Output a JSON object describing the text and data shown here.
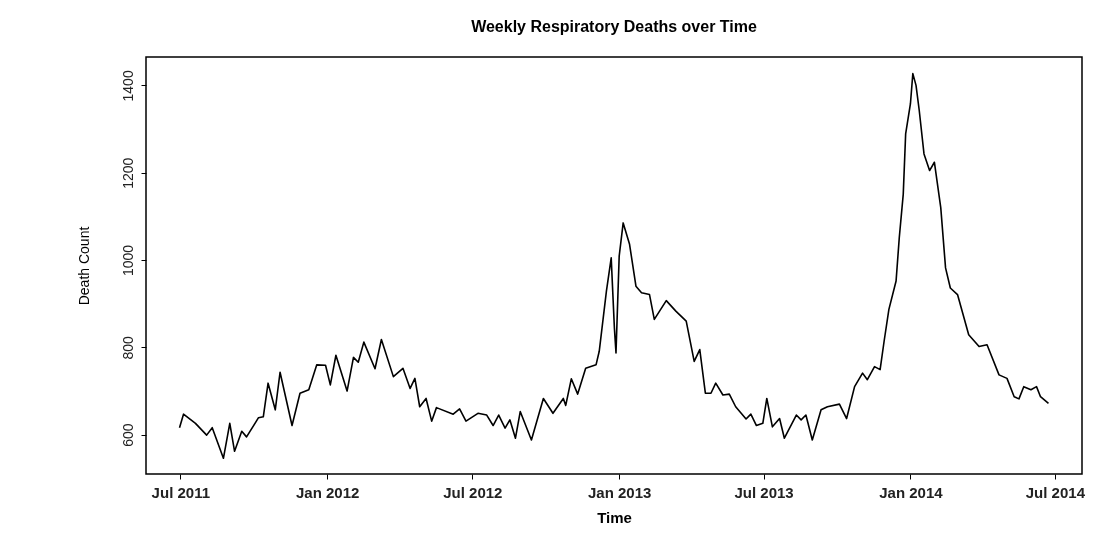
{
  "chart_data": {
    "type": "line",
    "title": "Weekly Respiratory Deaths over Time",
    "xlabel": "Time",
    "ylabel": "Death Count",
    "xlim": [
      "2011-05-19",
      "2014-08-04"
    ],
    "xticks": [
      {
        "value": "2011-07-01",
        "label": "Jul 2011"
      },
      {
        "value": "2012-01-01",
        "label": "Jan 2012"
      },
      {
        "value": "2012-07-01",
        "label": "Jul 2012"
      },
      {
        "value": "2013-01-01",
        "label": "Jan 2013"
      },
      {
        "value": "2013-07-01",
        "label": "Jul 2013"
      },
      {
        "value": "2014-01-01",
        "label": "Jan 2014"
      },
      {
        "value": "2014-07-01",
        "label": "Jul 2014"
      }
    ],
    "ylim": [
      510,
      1465
    ],
    "yticks": [
      600,
      800,
      1000,
      1200,
      1400
    ],
    "grid": false,
    "line_style": "solid",
    "series": [
      {
        "color": "#000000",
        "x": [
          "2011-06-30",
          "2011-07-05",
          "2011-07-20",
          "2011-08-03",
          "2011-08-10",
          "2011-08-24",
          "2011-09-01",
          "2011-09-07",
          "2011-09-16",
          "2011-09-22",
          "2011-10-07",
          "2011-10-13",
          "2011-10-19",
          "2011-10-28",
          "2011-11-03",
          "2011-11-18",
          "2011-11-28",
          "2011-12-09",
          "2011-12-19",
          "2011-12-30",
          "2012-01-05",
          "2012-01-12",
          "2012-01-26",
          "2012-02-03",
          "2012-02-09",
          "2012-02-16",
          "2012-03-01",
          "2012-03-09",
          "2012-03-24",
          "2012-04-05",
          "2012-04-14",
          "2012-04-20",
          "2012-04-26",
          "2012-05-04",
          "2012-05-11",
          "2012-05-17",
          "2012-06-07",
          "2012-06-15",
          "2012-06-23",
          "2012-07-08",
          "2012-07-19",
          "2012-07-27",
          "2012-08-03",
          "2012-08-11",
          "2012-08-17",
          "2012-08-24",
          "2012-08-30",
          "2012-09-13",
          "2012-09-28",
          "2012-10-10",
          "2012-10-23",
          "2012-10-26",
          "2012-11-02",
          "2012-11-10",
          "2012-11-20",
          "2012-12-03",
          "2012-12-07",
          "2012-12-16",
          "2012-12-22",
          "2012-12-26",
          "2012-12-28",
          "2013-01-01",
          "2013-01-06",
          "2013-01-14",
          "2013-01-22",
          "2013-01-29",
          "2013-02-08",
          "2013-02-14",
          "2013-03-01",
          "2013-03-13",
          "2013-03-26",
          "2013-04-05",
          "2013-04-12",
          "2013-04-19",
          "2013-04-26",
          "2013-05-02",
          "2013-05-11",
          "2013-05-19",
          "2013-05-27",
          "2013-06-09",
          "2013-06-15",
          "2013-06-22",
          "2013-06-30",
          "2013-07-05",
          "2013-07-12",
          "2013-07-21",
          "2013-07-27",
          "2013-08-11",
          "2013-08-17",
          "2013-08-23",
          "2013-08-31",
          "2013-09-11",
          "2013-09-19",
          "2013-10-04",
          "2013-10-13",
          "2013-10-23",
          "2013-11-02",
          "2013-11-08",
          "2013-11-17",
          "2013-11-24",
          "2013-11-29",
          "2013-12-05",
          "2013-12-14",
          "2013-12-18",
          "2013-12-23",
          "2013-12-26",
          "2014-01-01",
          "2014-01-04",
          "2014-01-08",
          "2014-01-12",
          "2014-01-18",
          "2014-01-25",
          "2014-01-31",
          "2014-02-08",
          "2014-02-14",
          "2014-02-20",
          "2014-03-01",
          "2014-03-15",
          "2014-03-28",
          "2014-04-07",
          "2014-04-22",
          "2014-05-02",
          "2014-05-11",
          "2014-05-17",
          "2014-05-23",
          "2014-06-01",
          "2014-06-08",
          "2014-06-13",
          "2014-06-23"
        ],
        "values": [
          616,
          647,
          626,
          599,
          616,
          546,
          626,
          562,
          608,
          595,
          639,
          641,
          718,
          657,
          743,
          621,
          695,
          703,
          760,
          759,
          714,
          782,
          700,
          777,
          766,
          812,
          751,
          818,
          733,
          752,
          706,
          729,
          664,
          683,
          631,
          662,
          647,
          659,
          631,
          649,
          645,
          621,
          645,
          615,
          634,
          592,
          653,
          588,
          683,
          649,
          683,
          667,
          728,
          693,
          752,
          760,
          791,
          929,
          1005,
          844,
          787,
          1009,
          1085,
          1036,
          940,
          925,
          921,
          864,
          907,
          883,
          860,
          768,
          795,
          695,
          695,
          718,
          691,
          693,
          664,
          636,
          647,
          621,
          626,
          683,
          618,
          637,
          592,
          645,
          634,
          645,
          588,
          657,
          664,
          670,
          637,
          710,
          741,
          726,
          756,
          749,
          814,
          887,
          952,
          1051,
          1151,
          1289,
          1358,
          1427,
          1400,
          1343,
          1243,
          1205,
          1224,
          1120,
          982,
          936,
          921,
          829,
          802,
          806,
          737,
          729,
          687,
          682,
          710,
          703,
          710,
          687,
          672
        ]
      }
    ]
  }
}
